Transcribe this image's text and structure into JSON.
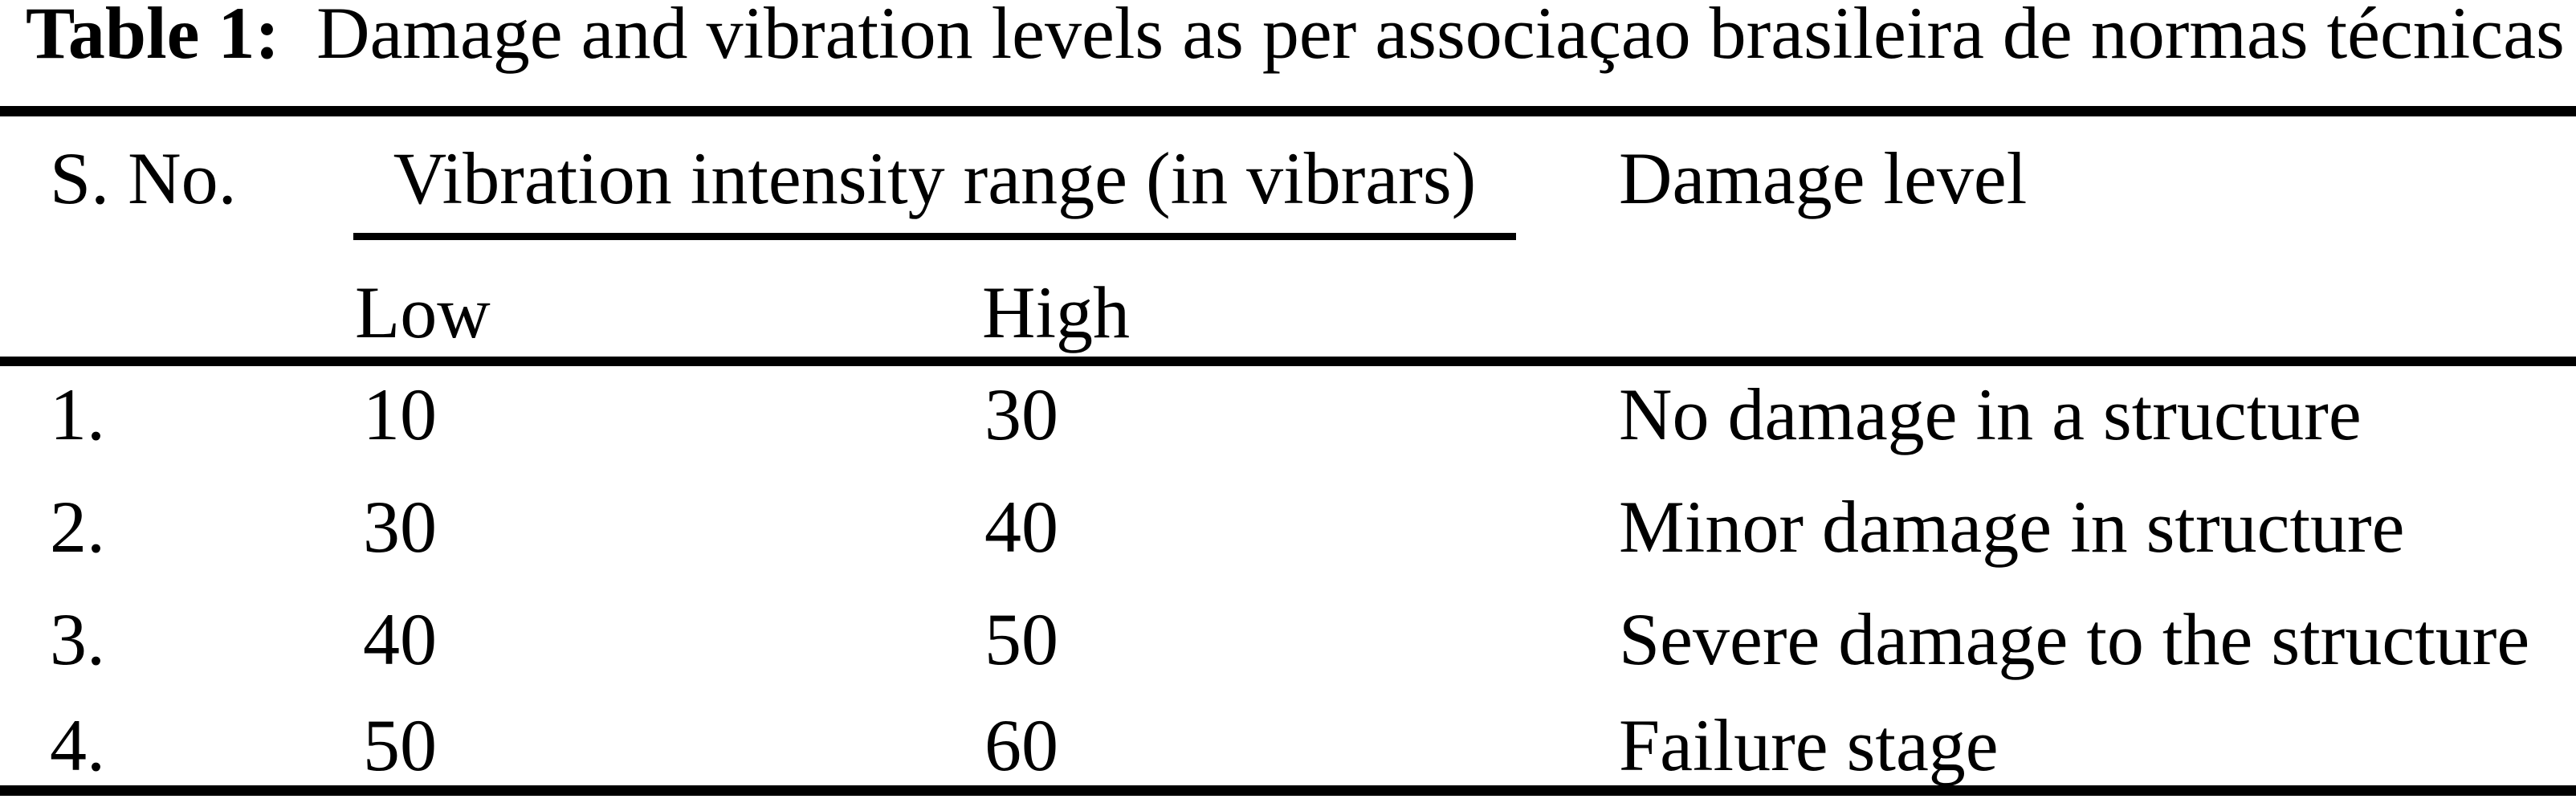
{
  "table": {
    "caption": {
      "label": "Table 1:",
      "text": "Damage and vibration levels as per associaçao brasileira de normas técnicas"
    },
    "columns": {
      "sno": "S. No.",
      "group": "Vibration intensity range (in vibrars)",
      "sub_low": "Low",
      "sub_high": "High",
      "damage": "Damage level"
    },
    "rows": [
      {
        "sno": "1.",
        "low": "10",
        "high": "30",
        "damage": "No damage in a structure"
      },
      {
        "sno": "2.",
        "low": "30",
        "high": "40",
        "damage": "Minor damage in structure"
      },
      {
        "sno": "3.",
        "low": "40",
        "high": "50",
        "damage": "Severe damage to the structure"
      },
      {
        "sno": "4.",
        "low": "50",
        "high": "60",
        "damage": "Failure stage"
      }
    ],
    "colors": {
      "text": "#000000",
      "background": "#ffffff",
      "rule": "#000000"
    }
  },
  "chart_data": {
    "type": "table",
    "title": "Table 1: Damage and vibration levels as per associaçao brasileira de normas técnicas",
    "columns": [
      "S. No.",
      "Low",
      "High",
      "Damage level"
    ],
    "column_group": {
      "label": "Vibration intensity range (in vibrars)",
      "spans": [
        "Low",
        "High"
      ]
    },
    "rows": [
      [
        "1.",
        10,
        30,
        "No damage in a structure"
      ],
      [
        "2.",
        30,
        40,
        "Minor damage in structure"
      ],
      [
        "3.",
        40,
        50,
        "Severe damage to the structure"
      ],
      [
        "4.",
        50,
        60,
        "Failure stage"
      ]
    ]
  }
}
